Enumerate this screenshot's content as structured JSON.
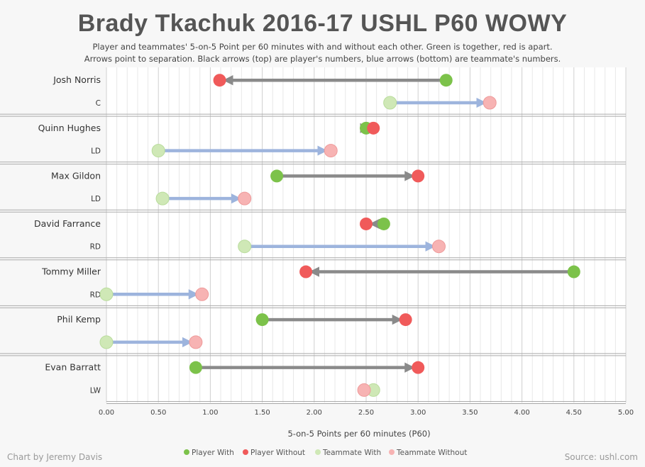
{
  "title": "Brady Tkachuk 2016-17 USHL P60 WOWY",
  "subtitle_line1": "Player and teammates' 5-on-5 Point per 60 minutes with and without each other. Green is together, red is apart.",
  "subtitle_line2": "Arrows point to separation. Black arrows (top) are player's numbers, blue arrows (bottom) are teammate's numbers.",
  "credit": "Chart by Jeremy Davis",
  "source": "Source: ushl.com",
  "colors": {
    "player_with": "#7cc24a",
    "player_without": "#f05a5a",
    "teammate_with": "#cfe8b6",
    "teammate_without": "#f7b3b3",
    "player_arrow": "#8a8a8a",
    "teammate_arrow": "#9db4dd"
  },
  "chart_data": {
    "type": "scatter",
    "xlabel": "5-on-5 Points per 60 minutes (P60)",
    "xlim": [
      0,
      5
    ],
    "x_ticks": [
      "0.00",
      "0.50",
      "1.00",
      "1.50",
      "2.00",
      "2.50",
      "3.00",
      "3.50",
      "4.00",
      "4.50",
      "5.00"
    ],
    "legend": [
      "Player With",
      "Player Without",
      "Teammate With",
      "Teammate Without"
    ],
    "legend_position": "bottom",
    "grid": true,
    "teammates": [
      {
        "name": "Josh Norris",
        "position": "C",
        "player_with": 3.27,
        "player_without": 1.09,
        "teammate_with": 2.73,
        "teammate_without": 3.69
      },
      {
        "name": "Quinn Hughes",
        "position": "LD",
        "player_with": 2.5,
        "player_without": 2.57,
        "teammate_with": 0.5,
        "teammate_without": 2.16
      },
      {
        "name": "Max Gildon",
        "position": "LD",
        "player_with": 1.64,
        "player_without": 3.0,
        "teammate_with": 0.54,
        "teammate_without": 1.33
      },
      {
        "name": "David Farrance",
        "position": "RD",
        "player_with": 2.67,
        "player_without": 2.5,
        "teammate_with": 1.33,
        "teammate_without": 3.2
      },
      {
        "name": "Tommy Miller",
        "position": "RD",
        "player_with": 4.5,
        "player_without": 1.92,
        "teammate_with": 0.0,
        "teammate_without": 0.92
      },
      {
        "name": "Phil Kemp",
        "position": "",
        "player_with": 1.5,
        "player_without": 2.88,
        "teammate_with": 0.0,
        "teammate_without": 0.86
      },
      {
        "name": "Evan Barratt",
        "position": "LW",
        "player_with": 0.86,
        "player_without": 3.0,
        "teammate_with": 2.57,
        "teammate_without": 2.48
      }
    ]
  }
}
